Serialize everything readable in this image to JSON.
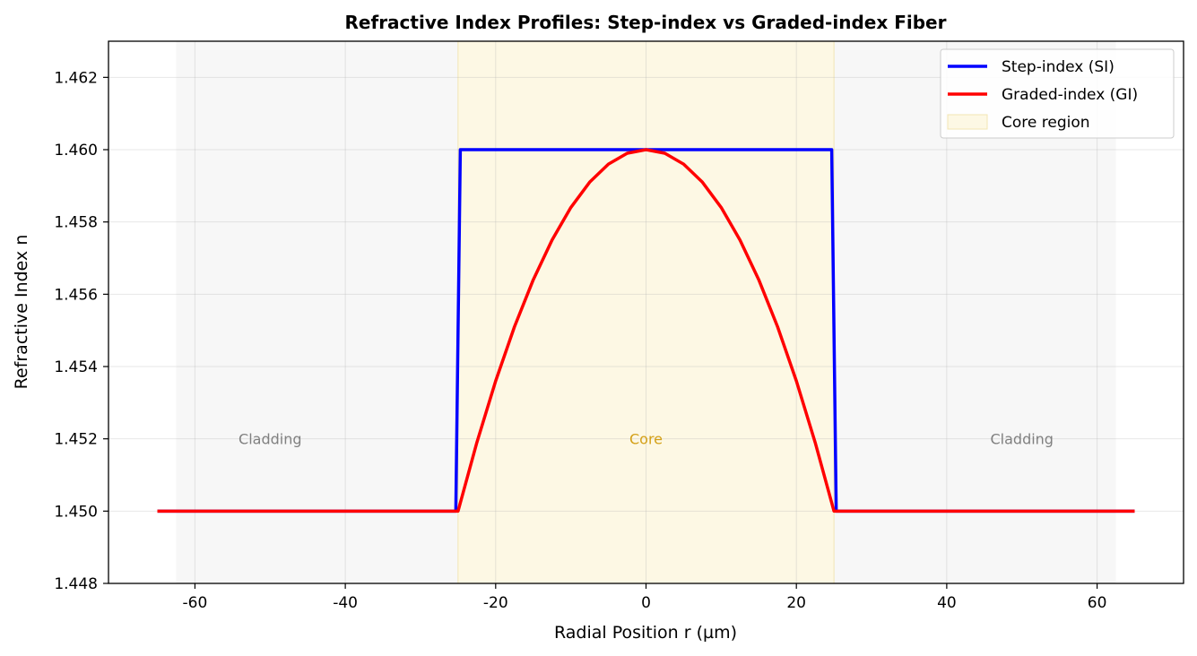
{
  "chart_data": {
    "type": "line",
    "title": "Refractive Index Profiles: Step-index vs Graded-index Fiber",
    "xlabel": "Radial Position r (µm)",
    "ylabel": "Refractive Index n",
    "xlim": [
      -71.5,
      71.5
    ],
    "ylim": [
      1.448,
      1.463
    ],
    "xticks": [
      -60,
      -40,
      -20,
      0,
      20,
      40,
      60
    ],
    "xtick_labels": [
      "-60",
      "-40",
      "-20",
      "0",
      "20",
      "40",
      "60"
    ],
    "yticks": [
      1.448,
      1.45,
      1.452,
      1.454,
      1.456,
      1.458,
      1.46,
      1.462
    ],
    "ytick_labels": [
      "1.448",
      "1.450",
      "1.452",
      "1.454",
      "1.456",
      "1.458",
      "1.460",
      "1.462"
    ],
    "grid": true,
    "legend_position": "top-right",
    "regions": [
      {
        "name": "cladding-left",
        "x_range": [
          -62.5,
          -25
        ],
        "color": "#f7f7f7"
      },
      {
        "name": "core",
        "x_range": [
          -25,
          25
        ],
        "color": "#fdf8e4",
        "legend": "Core region"
      },
      {
        "name": "cladding-right",
        "x_range": [
          25,
          62.5
        ],
        "color": "#f7f7f7"
      }
    ],
    "annotations": [
      {
        "text": "Cladding",
        "x": -50,
        "y": 1.452,
        "color": "#808080"
      },
      {
        "text": "Core",
        "x": 0,
        "y": 1.452,
        "color": "#d4a017"
      },
      {
        "text": "Cladding",
        "x": 50,
        "y": 1.452,
        "color": "#808080"
      }
    ],
    "series": [
      {
        "name": "Step-index (SI)",
        "color": "#0000ff",
        "x": [
          -65,
          -25.3,
          -24.7,
          24.7,
          25.3,
          65
        ],
        "y": [
          1.45,
          1.45,
          1.46,
          1.46,
          1.45,
          1.45
        ]
      },
      {
        "name": "Graded-index (GI)",
        "color": "#ff0000",
        "x": [
          -65,
          -25,
          -22.5,
          -20,
          -17.5,
          -15,
          -12.5,
          -10,
          -7.5,
          -5,
          -2.5,
          0,
          2.5,
          5,
          7.5,
          10,
          12.5,
          15,
          17.5,
          20,
          22.5,
          25,
          65
        ],
        "y": [
          1.45,
          1.45,
          1.4519,
          1.4536,
          1.4551,
          1.4564,
          1.4575,
          1.4584,
          1.4591,
          1.4596,
          1.4599,
          1.46,
          1.4599,
          1.4596,
          1.4591,
          1.4584,
          1.4575,
          1.4564,
          1.4551,
          1.4536,
          1.4519,
          1.45,
          1.45
        ]
      }
    ],
    "legend": [
      {
        "label": "Step-index (SI)",
        "kind": "line",
        "color": "#0000ff"
      },
      {
        "label": "Graded-index (GI)",
        "kind": "line",
        "color": "#ff0000"
      },
      {
        "label": "Core region",
        "kind": "patch",
        "color": "#fdf8e4"
      }
    ]
  }
}
